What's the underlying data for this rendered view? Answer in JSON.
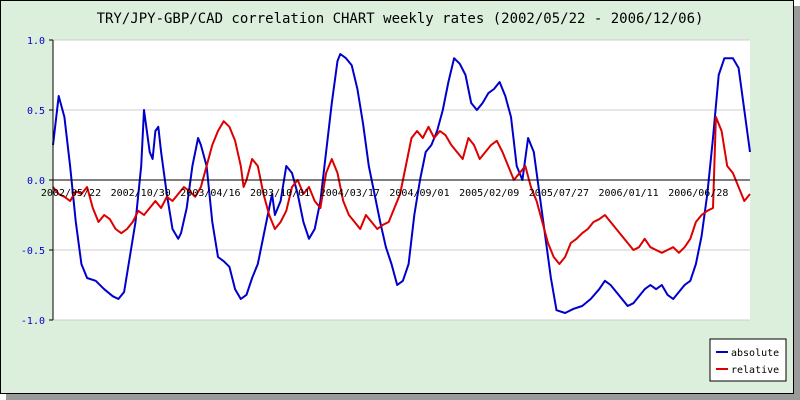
{
  "chart_data": {
    "type": "line",
    "title": "TRY/JPY-GBP/CAD correlation CHART weekly rates (2002/05/22 - 2006/12/06)",
    "xlabel": "",
    "ylabel": "",
    "ylim": [
      -1.0,
      1.0
    ],
    "yticks": [
      "1.0",
      "0.5",
      "0.0",
      "-0.5",
      "-1.0"
    ],
    "ytick_values": [
      1.0,
      0.5,
      0.0,
      -0.5,
      -1.0
    ],
    "xticks": [
      "2002/05/22",
      "2002/10/30",
      "2003/04/16",
      "2003/10/01",
      "2004/03/17",
      "2004/09/01",
      "2005/02/09",
      "2005/07/27",
      "2006/01/11",
      "2006/06/28"
    ],
    "grid": true,
    "legend_position": "bottom-right",
    "colors": {
      "absolute": "#0000cc",
      "relative": "#dd0000",
      "background": "#dcefdc",
      "plot_bg": "#ffffff",
      "grid": "#cccccc"
    },
    "series": [
      {
        "name": "absolute",
        "points": [
          [
            0,
            0.25
          ],
          [
            2,
            0.6
          ],
          [
            4,
            0.45
          ],
          [
            6,
            0.1
          ],
          [
            8,
            -0.3
          ],
          [
            10,
            -0.6
          ],
          [
            12,
            -0.7
          ],
          [
            15,
            -0.72
          ],
          [
            18,
            -0.78
          ],
          [
            21,
            -0.83
          ],
          [
            23,
            -0.85
          ],
          [
            25,
            -0.8
          ],
          [
            27,
            -0.55
          ],
          [
            29,
            -0.3
          ],
          [
            31,
            0.1
          ],
          [
            32,
            0.5
          ],
          [
            34,
            0.2
          ],
          [
            35,
            0.15
          ],
          [
            36,
            0.35
          ],
          [
            37,
            0.38
          ],
          [
            38,
            0.2
          ],
          [
            40,
            -0.1
          ],
          [
            42,
            -0.35
          ],
          [
            44,
            -0.42
          ],
          [
            45,
            -0.38
          ],
          [
            47,
            -0.2
          ],
          [
            49,
            0.1
          ],
          [
            51,
            0.3
          ],
          [
            52,
            0.25
          ],
          [
            54,
            0.1
          ],
          [
            56,
            -0.3
          ],
          [
            58,
            -0.55
          ],
          [
            60,
            -0.58
          ],
          [
            62,
            -0.62
          ],
          [
            64,
            -0.78
          ],
          [
            66,
            -0.85
          ],
          [
            68,
            -0.82
          ],
          [
            70,
            -0.7
          ],
          [
            72,
            -0.6
          ],
          [
            74,
            -0.4
          ],
          [
            76,
            -0.2
          ],
          [
            77,
            -0.1
          ],
          [
            78,
            -0.25
          ],
          [
            80,
            -0.15
          ],
          [
            82,
            0.1
          ],
          [
            84,
            0.05
          ],
          [
            86,
            -0.1
          ],
          [
            88,
            -0.3
          ],
          [
            90,
            -0.42
          ],
          [
            92,
            -0.35
          ],
          [
            94,
            -0.15
          ],
          [
            96,
            0.2
          ],
          [
            98,
            0.55
          ],
          [
            100,
            0.85
          ],
          [
            101,
            0.9
          ],
          [
            103,
            0.87
          ],
          [
            105,
            0.82
          ],
          [
            107,
            0.65
          ],
          [
            109,
            0.4
          ],
          [
            111,
            0.1
          ],
          [
            113,
            -0.1
          ],
          [
            115,
            -0.3
          ],
          [
            117,
            -0.48
          ],
          [
            119,
            -0.6
          ],
          [
            121,
            -0.75
          ],
          [
            123,
            -0.72
          ],
          [
            125,
            -0.6
          ],
          [
            127,
            -0.25
          ],
          [
            129,
            0.0
          ],
          [
            131,
            0.2
          ],
          [
            133,
            0.25
          ],
          [
            135,
            0.35
          ],
          [
            137,
            0.5
          ],
          [
            139,
            0.7
          ],
          [
            141,
            0.87
          ],
          [
            143,
            0.83
          ],
          [
            145,
            0.75
          ],
          [
            147,
            0.55
          ],
          [
            149,
            0.5
          ],
          [
            151,
            0.55
          ],
          [
            153,
            0.62
          ],
          [
            155,
            0.65
          ],
          [
            157,
            0.7
          ],
          [
            159,
            0.6
          ],
          [
            161,
            0.45
          ],
          [
            163,
            0.1
          ],
          [
            165,
            0.0
          ],
          [
            167,
            0.3
          ],
          [
            169,
            0.2
          ],
          [
            171,
            -0.1
          ],
          [
            173,
            -0.4
          ],
          [
            175,
            -0.7
          ],
          [
            177,
            -0.93
          ],
          [
            180,
            -0.95
          ],
          [
            183,
            -0.92
          ],
          [
            186,
            -0.9
          ],
          [
            189,
            -0.85
          ],
          [
            192,
            -0.78
          ],
          [
            194,
            -0.72
          ],
          [
            196,
            -0.75
          ],
          [
            198,
            -0.8
          ],
          [
            200,
            -0.85
          ],
          [
            202,
            -0.9
          ],
          [
            204,
            -0.88
          ],
          [
            206,
            -0.83
          ],
          [
            208,
            -0.78
          ],
          [
            210,
            -0.75
          ],
          [
            212,
            -0.78
          ],
          [
            214,
            -0.75
          ],
          [
            216,
            -0.82
          ],
          [
            218,
            -0.85
          ],
          [
            220,
            -0.8
          ],
          [
            222,
            -0.75
          ],
          [
            224,
            -0.72
          ],
          [
            226,
            -0.6
          ],
          [
            228,
            -0.4
          ],
          [
            230,
            -0.1
          ],
          [
            232,
            0.3
          ],
          [
            234,
            0.75
          ],
          [
            236,
            0.87
          ],
          [
            239,
            0.87
          ],
          [
            241,
            0.8
          ],
          [
            243,
            0.5
          ],
          [
            245,
            0.2
          ]
        ]
      },
      {
        "name": "relative",
        "points": [
          [
            0,
            -0.05
          ],
          [
            2,
            -0.1
          ],
          [
            4,
            -0.12
          ],
          [
            6,
            -0.15
          ],
          [
            8,
            -0.08
          ],
          [
            10,
            -0.1
          ],
          [
            12,
            -0.05
          ],
          [
            14,
            -0.2
          ],
          [
            16,
            -0.3
          ],
          [
            18,
            -0.25
          ],
          [
            20,
            -0.28
          ],
          [
            22,
            -0.35
          ],
          [
            24,
            -0.38
          ],
          [
            26,
            -0.35
          ],
          [
            28,
            -0.3
          ],
          [
            30,
            -0.22
          ],
          [
            32,
            -0.25
          ],
          [
            34,
            -0.2
          ],
          [
            36,
            -0.15
          ],
          [
            38,
            -0.2
          ],
          [
            40,
            -0.12
          ],
          [
            42,
            -0.15
          ],
          [
            44,
            -0.1
          ],
          [
            46,
            -0.05
          ],
          [
            48,
            -0.08
          ],
          [
            50,
            -0.12
          ],
          [
            52,
            -0.05
          ],
          [
            54,
            0.1
          ],
          [
            56,
            0.25
          ],
          [
            58,
            0.35
          ],
          [
            60,
            0.42
          ],
          [
            62,
            0.38
          ],
          [
            64,
            0.28
          ],
          [
            66,
            0.1
          ],
          [
            67,
            -0.05
          ],
          [
            68,
            0.0
          ],
          [
            70,
            0.15
          ],
          [
            72,
            0.1
          ],
          [
            74,
            -0.1
          ],
          [
            76,
            -0.25
          ],
          [
            78,
            -0.35
          ],
          [
            80,
            -0.3
          ],
          [
            82,
            -0.22
          ],
          [
            84,
            -0.05
          ],
          [
            86,
            0.0
          ],
          [
            88,
            -0.1
          ],
          [
            90,
            -0.05
          ],
          [
            92,
            -0.15
          ],
          [
            94,
            -0.2
          ],
          [
            96,
            0.05
          ],
          [
            98,
            0.15
          ],
          [
            100,
            0.05
          ],
          [
            102,
            -0.15
          ],
          [
            104,
            -0.25
          ],
          [
            106,
            -0.3
          ],
          [
            108,
            -0.35
          ],
          [
            110,
            -0.25
          ],
          [
            112,
            -0.3
          ],
          [
            114,
            -0.35
          ],
          [
            116,
            -0.32
          ],
          [
            118,
            -0.3
          ],
          [
            120,
            -0.2
          ],
          [
            122,
            -0.1
          ],
          [
            124,
            0.1
          ],
          [
            126,
            0.3
          ],
          [
            128,
            0.35
          ],
          [
            130,
            0.3
          ],
          [
            132,
            0.38
          ],
          [
            134,
            0.3
          ],
          [
            136,
            0.35
          ],
          [
            138,
            0.32
          ],
          [
            140,
            0.25
          ],
          [
            142,
            0.2
          ],
          [
            144,
            0.15
          ],
          [
            146,
            0.3
          ],
          [
            148,
            0.25
          ],
          [
            150,
            0.15
          ],
          [
            152,
            0.2
          ],
          [
            154,
            0.25
          ],
          [
            156,
            0.28
          ],
          [
            158,
            0.2
          ],
          [
            160,
            0.1
          ],
          [
            162,
            0.0
          ],
          [
            164,
            0.05
          ],
          [
            166,
            0.1
          ],
          [
            168,
            -0.05
          ],
          [
            170,
            -0.15
          ],
          [
            172,
            -0.3
          ],
          [
            174,
            -0.45
          ],
          [
            176,
            -0.55
          ],
          [
            178,
            -0.6
          ],
          [
            180,
            -0.55
          ],
          [
            182,
            -0.45
          ],
          [
            184,
            -0.42
          ],
          [
            186,
            -0.38
          ],
          [
            188,
            -0.35
          ],
          [
            190,
            -0.3
          ],
          [
            192,
            -0.28
          ],
          [
            194,
            -0.25
          ],
          [
            196,
            -0.3
          ],
          [
            198,
            -0.35
          ],
          [
            200,
            -0.4
          ],
          [
            202,
            -0.45
          ],
          [
            204,
            -0.5
          ],
          [
            206,
            -0.48
          ],
          [
            208,
            -0.42
          ],
          [
            210,
            -0.48
          ],
          [
            212,
            -0.5
          ],
          [
            214,
            -0.52
          ],
          [
            216,
            -0.5
          ],
          [
            218,
            -0.48
          ],
          [
            220,
            -0.52
          ],
          [
            222,
            -0.48
          ],
          [
            224,
            -0.42
          ],
          [
            226,
            -0.3
          ],
          [
            228,
            -0.25
          ],
          [
            230,
            -0.22
          ],
          [
            232,
            -0.2
          ],
          [
            233,
            0.45
          ],
          [
            235,
            0.35
          ],
          [
            237,
            0.1
          ],
          [
            239,
            0.05
          ],
          [
            241,
            -0.05
          ],
          [
            243,
            -0.15
          ],
          [
            245,
            -0.1
          ]
        ]
      }
    ]
  }
}
